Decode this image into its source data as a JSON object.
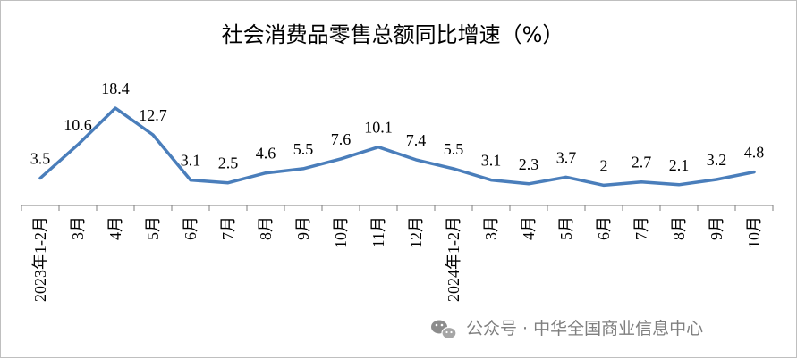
{
  "chart_data": {
    "type": "line",
    "title": "社会消费品零售总额同比增速（%）",
    "categories": [
      "2023年1-2月",
      "3月",
      "4月",
      "5月",
      "6月",
      "7月",
      "8月",
      "9月",
      "10月",
      "11月",
      "12月",
      "2024年1-2月",
      "3月",
      "4月",
      "5月",
      "6月",
      "7月",
      "8月",
      "9月",
      "10月"
    ],
    "series": [
      {
        "values": [
          3.5,
          10.6,
          18.4,
          12.7,
          3.1,
          2.5,
          4.6,
          5.5,
          7.6,
          10.1,
          7.4,
          5.5,
          3.1,
          2.3,
          3.7,
          2,
          2.7,
          2.1,
          3.2,
          4.8
        ],
        "labels": [
          "3.5",
          "10.6",
          "18.4",
          "12.7",
          "3.1",
          "2.5",
          "4.6",
          "5.5",
          "7.6",
          "10.1",
          "7.4",
          "5.5",
          "3.1",
          "2.3",
          "3.7",
          "2",
          "2.7",
          "2.1",
          "3.2",
          "4.8"
        ]
      }
    ],
    "ylim": [
      0,
      20
    ],
    "grid": false,
    "legend": "none",
    "line_color": "#4a7ebb",
    "axis_color": "#7f7f7f"
  },
  "watermark": {
    "text": "公众号 · 中华全国商业信息中心",
    "icon": "wechat-icon",
    "color": "#7f7f7f"
  }
}
